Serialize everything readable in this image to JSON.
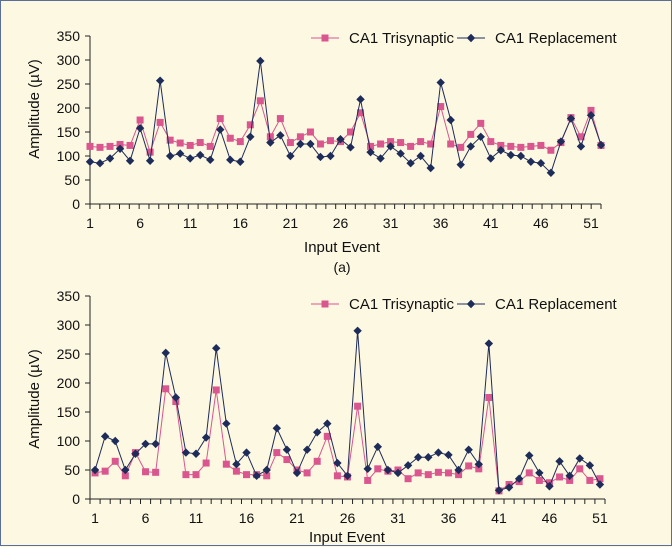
{
  "colors": {
    "background": "#fdf8e2",
    "trisynaptic": "#d9568f",
    "replacement": "#1e2c5a",
    "axis": "#222222"
  },
  "chart_data": [
    {
      "type": "line",
      "caption": "(a)",
      "xlabel": "Input Event",
      "ylabel": "Amplitude (µV)",
      "ylim": [
        0,
        350
      ],
      "yticks": [
        0,
        50,
        100,
        150,
        200,
        250,
        300,
        350
      ],
      "xticks": [
        1,
        6,
        11,
        16,
        21,
        26,
        31,
        36,
        41,
        46,
        51
      ],
      "x": [
        1,
        2,
        3,
        4,
        5,
        6,
        7,
        8,
        9,
        10,
        11,
        12,
        13,
        14,
        15,
        16,
        17,
        18,
        19,
        20,
        21,
        22,
        23,
        24,
        25,
        26,
        27,
        28,
        29,
        30,
        31,
        32,
        33,
        34,
        35,
        36,
        37,
        38,
        39,
        40,
        41,
        42,
        43,
        44,
        45,
        46,
        47,
        48,
        49,
        50,
        51,
        52
      ],
      "legend": "top-right",
      "series": [
        {
          "name": "CA1 Trisynaptic",
          "marker": "square",
          "values": [
            120,
            118,
            120,
            124,
            122,
            175,
            108,
            170,
            133,
            127,
            122,
            128,
            120,
            178,
            137,
            130,
            165,
            215,
            140,
            178,
            128,
            140,
            150,
            125,
            132,
            130,
            150,
            190,
            120,
            125,
            130,
            128,
            120,
            130,
            125,
            203,
            125,
            118,
            145,
            168,
            130,
            122,
            120,
            118,
            120,
            122,
            112,
            128,
            180,
            140,
            195,
            122
          ]
        },
        {
          "name": "CA1 Replacement",
          "marker": "diamond",
          "values": [
            88,
            85,
            95,
            115,
            90,
            158,
            90,
            257,
            100,
            105,
            95,
            102,
            92,
            155,
            92,
            88,
            140,
            298,
            128,
            143,
            100,
            125,
            125,
            98,
            100,
            135,
            118,
            218,
            108,
            95,
            120,
            105,
            85,
            100,
            75,
            253,
            175,
            82,
            120,
            140,
            95,
            112,
            102,
            100,
            88,
            85,
            65,
            130,
            178,
            120,
            185,
            123
          ]
        }
      ]
    },
    {
      "type": "line",
      "xlabel": "Input Event",
      "ylabel": "Amplitude (µV)",
      "ylim": [
        0,
        350
      ],
      "yticks": [
        0,
        50,
        100,
        150,
        200,
        250,
        300,
        350
      ],
      "xticks": [
        1,
        6,
        11,
        16,
        21,
        26,
        31,
        36,
        41,
        46,
        51
      ],
      "x": [
        1,
        2,
        3,
        4,
        5,
        6,
        7,
        8,
        9,
        10,
        11,
        12,
        13,
        14,
        15,
        16,
        17,
        18,
        19,
        20,
        21,
        22,
        23,
        24,
        25,
        26,
        27,
        28,
        29,
        30,
        31,
        32,
        33,
        34,
        35,
        36,
        37,
        38,
        39,
        40,
        41,
        42,
        43,
        44,
        45,
        46,
        47,
        48,
        49,
        50,
        51
      ],
      "legend": "top-right",
      "series": [
        {
          "name": "CA1 Trisynaptic",
          "marker": "square",
          "values": [
            45,
            48,
            65,
            40,
            80,
            47,
            46,
            190,
            168,
            42,
            42,
            62,
            188,
            60,
            48,
            42,
            42,
            40,
            80,
            68,
            50,
            45,
            65,
            108,
            40,
            38,
            160,
            32,
            52,
            48,
            50,
            35,
            45,
            42,
            46,
            45,
            42,
            57,
            52,
            175,
            14,
            25,
            30,
            45,
            32,
            28,
            38,
            32,
            52,
            32,
            35
          ]
        },
        {
          "name": "CA1 Replacement",
          "marker": "diamond",
          "values": [
            50,
            108,
            100,
            50,
            78,
            95,
            95,
            252,
            175,
            80,
            78,
            106,
            260,
            130,
            60,
            80,
            40,
            50,
            122,
            85,
            45,
            85,
            115,
            130,
            62,
            40,
            290,
            52,
            90,
            50,
            45,
            58,
            72,
            72,
            80,
            76,
            50,
            85,
            60,
            268,
            15,
            20,
            35,
            75,
            45,
            22,
            65,
            40,
            70,
            58,
            25
          ]
        }
      ]
    }
  ]
}
